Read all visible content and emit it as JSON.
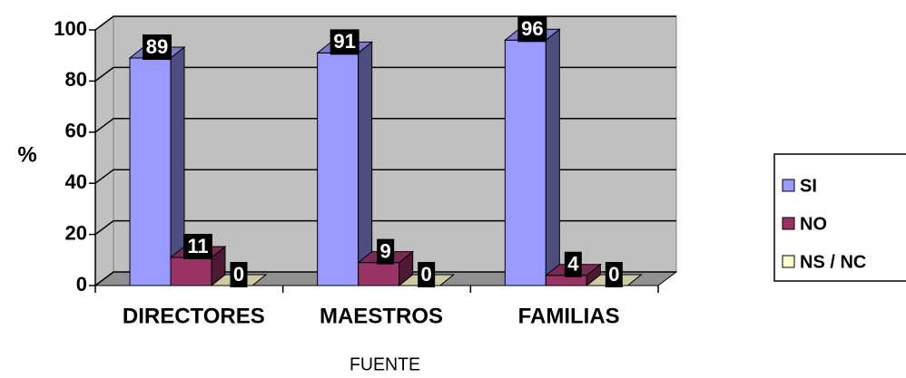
{
  "chart_data": {
    "type": "bar3d",
    "categories": [
      "DIRECTORES",
      "MAESTROS",
      "FAMILIAS"
    ],
    "series": [
      {
        "name": "SI",
        "color": "#9999ff",
        "values": [
          89,
          91,
          96
        ]
      },
      {
        "name": "NO",
        "color": "#993366",
        "values": [
          11,
          9,
          4
        ]
      },
      {
        "name": "NS / NC",
        "color": "#ffffcc",
        "values": [
          0,
          0,
          0
        ]
      }
    ],
    "y_label": "%",
    "x_label": "FUENTE",
    "ylim": [
      0,
      100
    ],
    "yticks": [
      0,
      20,
      40,
      60,
      80,
      100
    ],
    "grid": true,
    "legend": "right"
  }
}
